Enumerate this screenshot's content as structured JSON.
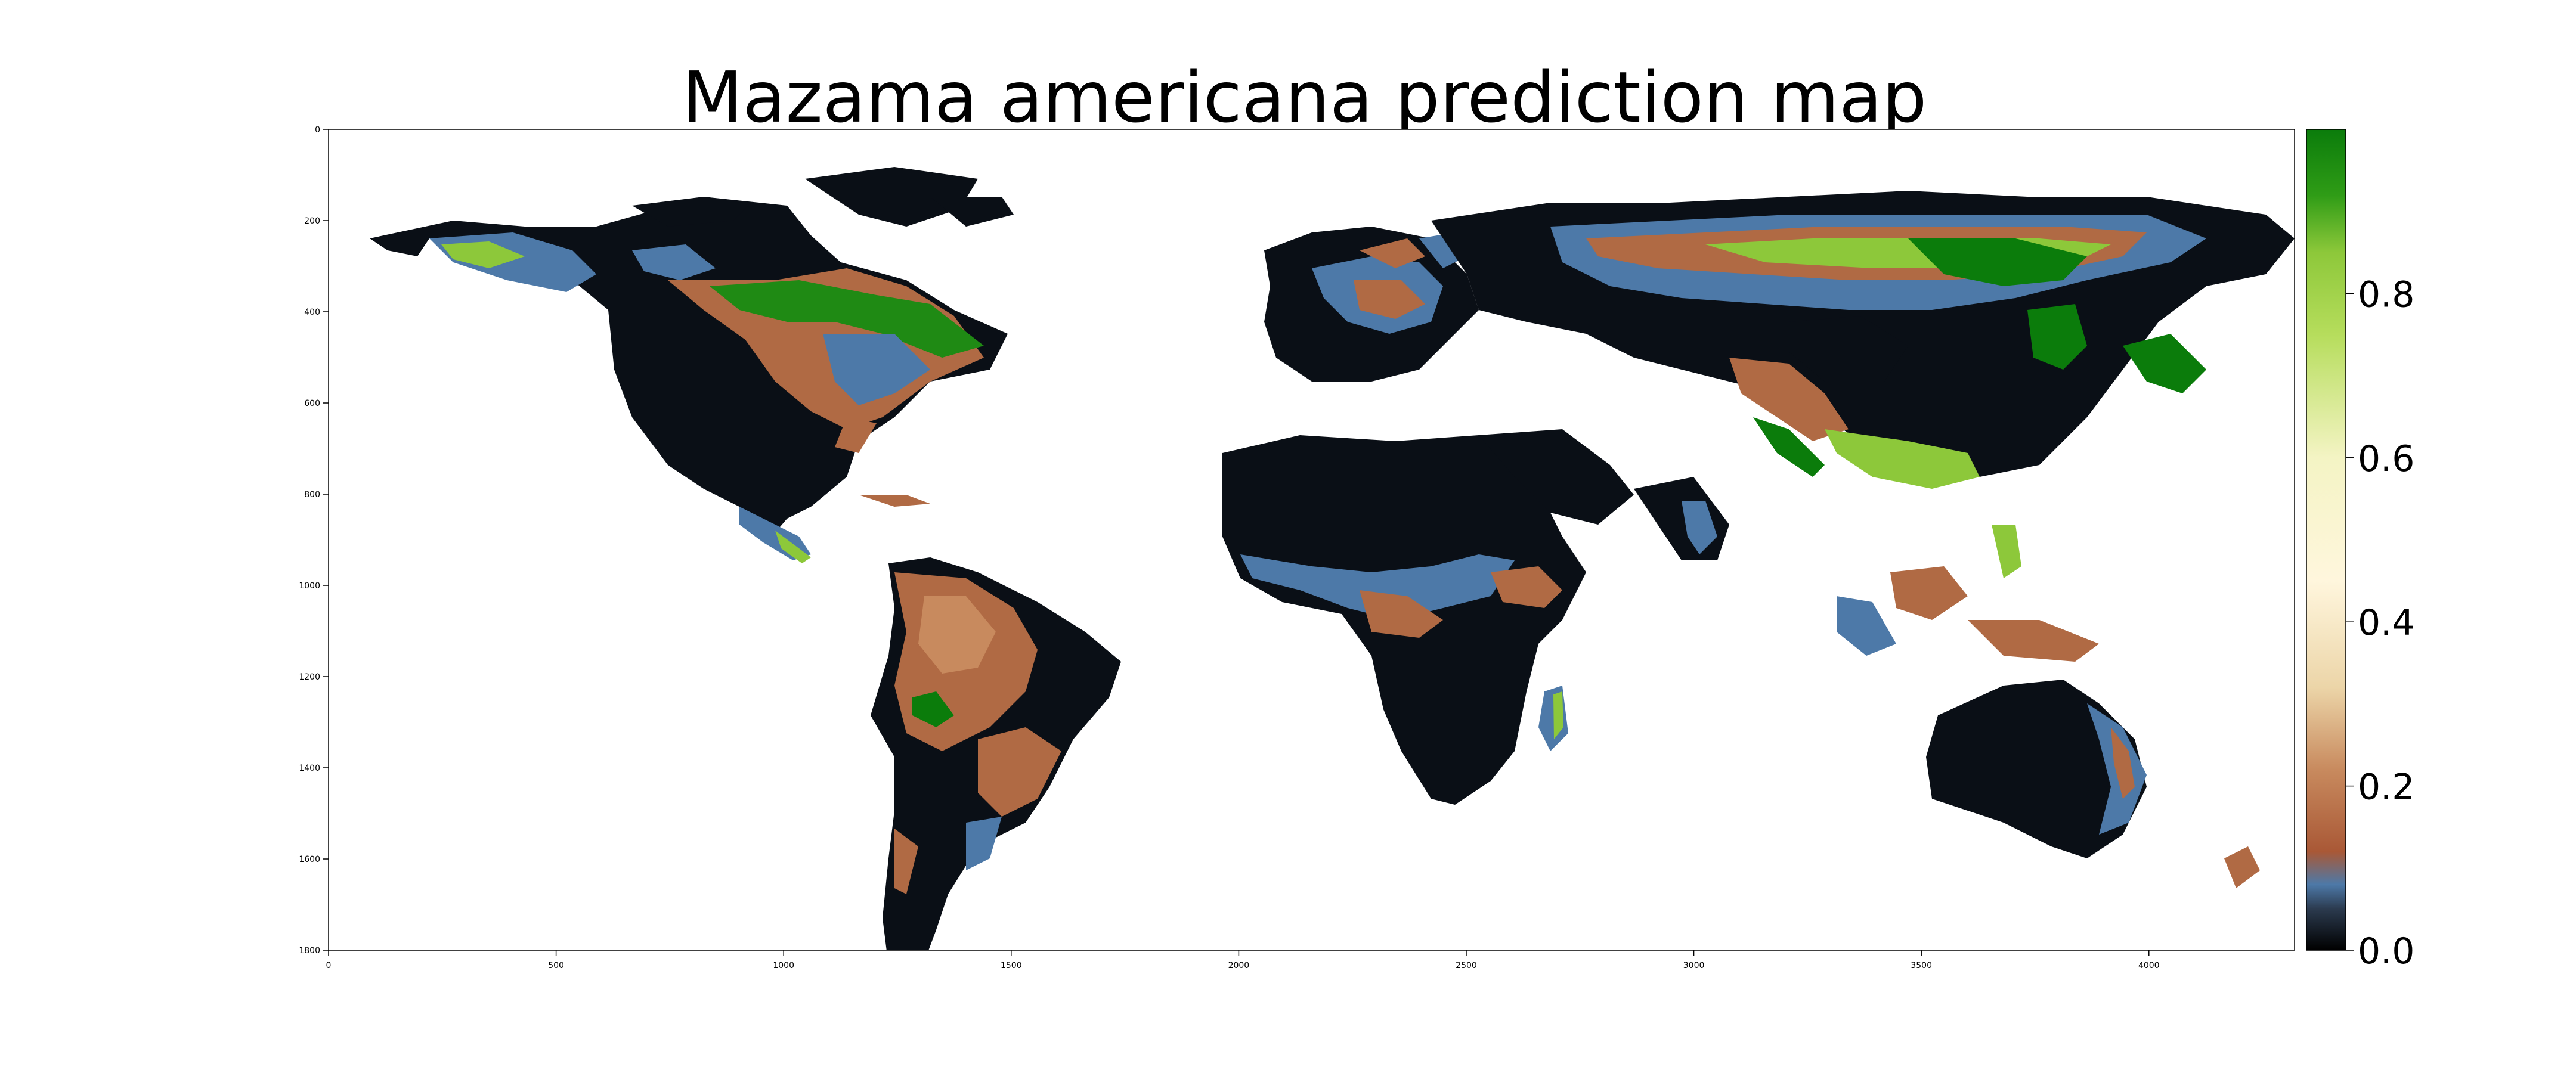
{
  "title": "Mazama americana prediction map",
  "map": {
    "x_ticks": [
      "0",
      "500",
      "1000",
      "1500",
      "2000",
      "2500",
      "3000",
      "3500",
      "4000"
    ],
    "y_ticks": [
      "0",
      "200",
      "400",
      "600",
      "800",
      "1000",
      "1200",
      "1400",
      "1600",
      "1800"
    ],
    "xlim": [
      0,
      4320
    ],
    "ylim": [
      1800,
      0
    ],
    "background": "#ffffff",
    "colormap": [
      {
        "value": 0.0,
        "color": "#000000"
      },
      {
        "value": 0.05,
        "color": "#2b3a4e"
      },
      {
        "value": 0.08,
        "color": "#4d79a8"
      },
      {
        "value": 0.12,
        "color": "#a95836"
      },
      {
        "value": 0.22,
        "color": "#c88a5e"
      },
      {
        "value": 0.32,
        "color": "#ecd5a8"
      },
      {
        "value": 0.45,
        "color": "#fff6dd"
      },
      {
        "value": 0.6,
        "color": "#f4f4c4"
      },
      {
        "value": 0.75,
        "color": "#b6dd5c"
      },
      {
        "value": 0.85,
        "color": "#8dc83a"
      },
      {
        "value": 0.92,
        "color": "#2f9c16"
      },
      {
        "value": 1.0,
        "color": "#0b7c0b"
      }
    ]
  },
  "colorbar": {
    "min": 0.0,
    "max": 1.0,
    "ticks": [
      {
        "value": 0.0,
        "label": "0.0"
      },
      {
        "value": 0.2,
        "label": "0.2"
      },
      {
        "value": 0.4,
        "label": "0.4"
      },
      {
        "value": 0.6,
        "label": "0.6"
      },
      {
        "value": 0.8,
        "label": "0.8"
      }
    ]
  },
  "colors": {
    "ocean": "#ffffff",
    "land_low": "#000000",
    "land_mid": "#4d79a8",
    "land_brown": "#b06a44",
    "land_high": "#0b7c0b"
  }
}
